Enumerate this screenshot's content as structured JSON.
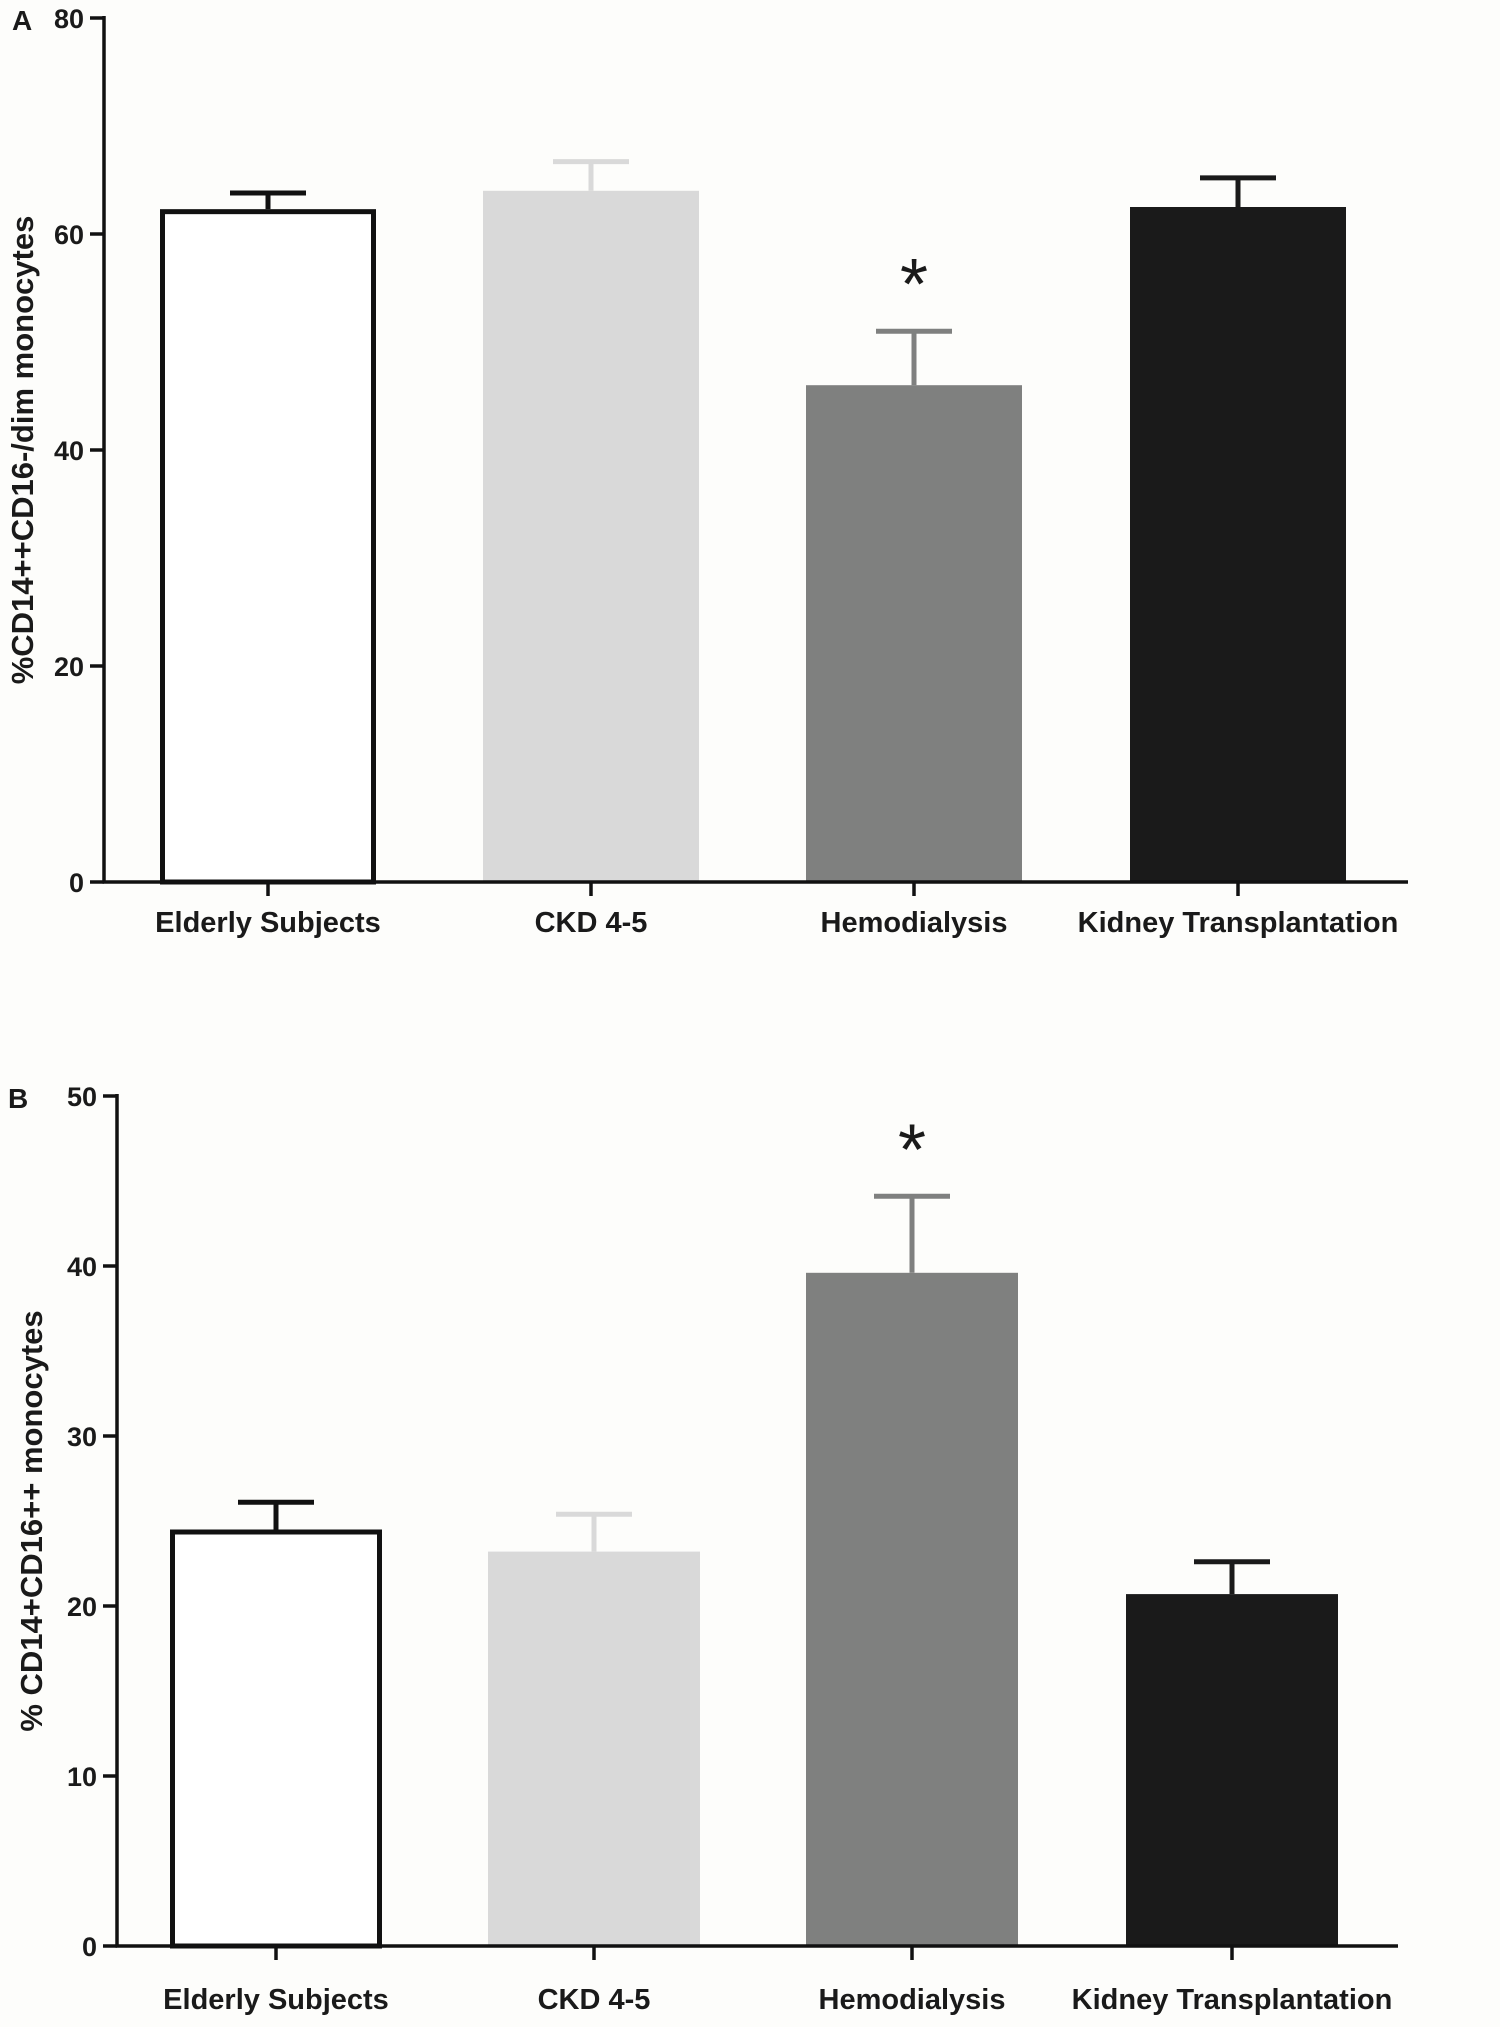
{
  "chart_data": [
    {
      "panel": "A",
      "type": "bar",
      "title": "",
      "xlabel": "",
      "ylabel": "%CD14++CD16-/dim monocytes",
      "ylim": [
        0,
        80
      ],
      "yticks": [
        0,
        20,
        40,
        60,
        80
      ],
      "categories": [
        "Elderly Subjects",
        "CKD 4-5",
        "Hemodialysis",
        "Kidney Transplantation"
      ],
      "values": [
        62.3,
        64.0,
        46.0,
        62.5
      ],
      "errors": [
        1.5,
        2.7,
        5.0,
        2.7
      ],
      "significance": [
        "",
        "",
        "*",
        ""
      ],
      "colors": [
        "#ffffff",
        "#d9d9d9",
        "#7f807f",
        "#1a1a1a"
      ],
      "errorbar_colors": [
        "#111111",
        "#d9d9d9",
        "#7f807f",
        "#1a1a1a"
      ],
      "outline": [
        "#111111",
        null,
        null,
        null
      ]
    },
    {
      "panel": "B",
      "type": "bar",
      "title": "",
      "xlabel": "",
      "ylabel": "% CD14+CD16++ monocytes",
      "ylim": [
        0,
        50
      ],
      "yticks": [
        0,
        10,
        20,
        30,
        40,
        50
      ],
      "categories": [
        "Elderly Subjects",
        "CKD 4-5",
        "Hemodialysis",
        "Kidney Transplantation"
      ],
      "values": [
        24.5,
        23.2,
        39.6,
        20.7
      ],
      "errors": [
        1.6,
        2.2,
        4.5,
        1.9
      ],
      "significance": [
        "",
        "",
        "*",
        ""
      ],
      "colors": [
        "#ffffff",
        "#d9d9d9",
        "#7f807f",
        "#1a1a1a"
      ],
      "errorbar_colors": [
        "#111111",
        "#d9d9d9",
        "#7f807f",
        "#1a1a1a"
      ],
      "outline": [
        "#111111",
        null,
        null,
        null
      ]
    }
  ]
}
